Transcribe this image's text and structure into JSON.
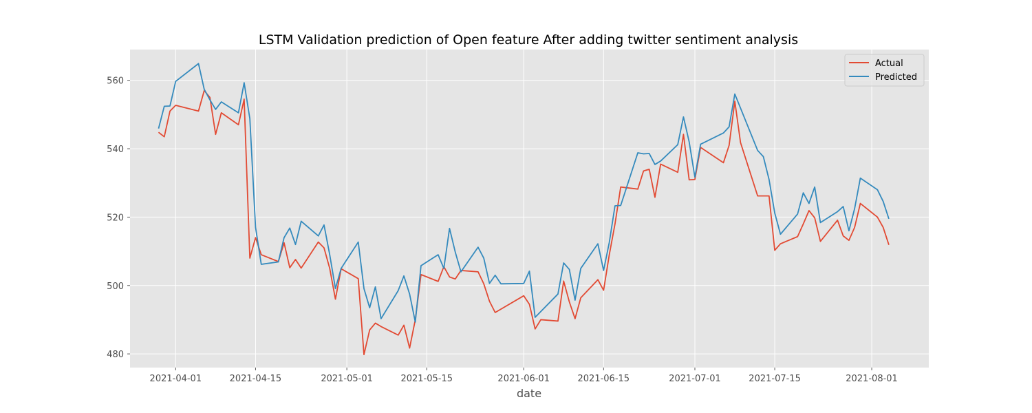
{
  "chart_data": {
    "type": "line",
    "title": "LSTM Validation prediction of Open feature After adding twitter sentiment analysis",
    "xlabel": "date",
    "ylabel": "",
    "x_ticks": [
      "2021-04-01",
      "2021-04-15",
      "2021-05-01",
      "2021-05-15",
      "2021-06-01",
      "2021-06-15",
      "2021-07-01",
      "2021-07-15",
      "2021-08-01"
    ],
    "y_ticks": [
      480,
      500,
      520,
      540,
      560
    ],
    "xlim": [
      "2021-03-24",
      "2021-08-11"
    ],
    "ylim": [
      476,
      569
    ],
    "grid": true,
    "legend_position": "top-right",
    "series": [
      {
        "name": "Actual",
        "color": "#e24a33",
        "points": [
          [
            "2021-03-29",
            544.8
          ],
          [
            "2021-03-30",
            543.5
          ],
          [
            "2021-03-31",
            551.0
          ],
          [
            "2021-04-01",
            552.7
          ],
          [
            "2021-04-05",
            551.0
          ],
          [
            "2021-04-06",
            557.0
          ],
          [
            "2021-04-07",
            555.0
          ],
          [
            "2021-04-08",
            544.2
          ],
          [
            "2021-04-09",
            550.5
          ],
          [
            "2021-04-12",
            547.0
          ],
          [
            "2021-04-13",
            554.5
          ],
          [
            "2021-04-14",
            508.0
          ],
          [
            "2021-04-15",
            514.0
          ],
          [
            "2021-04-16",
            509.0
          ],
          [
            "2021-04-19",
            507.0
          ],
          [
            "2021-04-20",
            512.5
          ],
          [
            "2021-04-21",
            505.2
          ],
          [
            "2021-04-22",
            507.6
          ],
          [
            "2021-04-23",
            505.1
          ],
          [
            "2021-04-26",
            512.7
          ],
          [
            "2021-04-27",
            511.0
          ],
          [
            "2021-04-28",
            505.0
          ],
          [
            "2021-04-29",
            496.0
          ],
          [
            "2021-04-30",
            504.9
          ],
          [
            "2021-05-03",
            502.0
          ],
          [
            "2021-05-04",
            479.8
          ],
          [
            "2021-05-05",
            487.0
          ],
          [
            "2021-05-06",
            489.0
          ],
          [
            "2021-05-07",
            488.0
          ],
          [
            "2021-05-10",
            485.5
          ],
          [
            "2021-05-11",
            488.4
          ],
          [
            "2021-05-12",
            481.7
          ],
          [
            "2021-05-13",
            490.0
          ],
          [
            "2021-05-14",
            503.2
          ],
          [
            "2021-05-17",
            501.2
          ],
          [
            "2021-05-18",
            505.5
          ],
          [
            "2021-05-19",
            502.5
          ],
          [
            "2021-05-20",
            501.9
          ],
          [
            "2021-05-21",
            504.4
          ],
          [
            "2021-05-24",
            504.0
          ],
          [
            "2021-05-25",
            500.5
          ],
          [
            "2021-05-26",
            495.4
          ],
          [
            "2021-05-27",
            492.1
          ],
          [
            "2021-06-01",
            497.0
          ],
          [
            "2021-06-02",
            494.5
          ],
          [
            "2021-06-03",
            487.3
          ],
          [
            "2021-06-04",
            490.0
          ],
          [
            "2021-06-07",
            489.6
          ],
          [
            "2021-06-08",
            501.3
          ],
          [
            "2021-06-09",
            495.2
          ],
          [
            "2021-06-10",
            490.3
          ],
          [
            "2021-06-11",
            496.4
          ],
          [
            "2021-06-14",
            501.7
          ],
          [
            "2021-06-15",
            498.6
          ],
          [
            "2021-06-16",
            509.0
          ],
          [
            "2021-06-17",
            518.0
          ],
          [
            "2021-06-18",
            528.8
          ],
          [
            "2021-06-21",
            528.2
          ],
          [
            "2021-06-22",
            533.5
          ],
          [
            "2021-06-23",
            534.0
          ],
          [
            "2021-06-24",
            525.8
          ],
          [
            "2021-06-25",
            535.5
          ],
          [
            "2021-06-28",
            533.1
          ],
          [
            "2021-06-29",
            544.2
          ],
          [
            "2021-06-30",
            530.9
          ],
          [
            "2021-07-01",
            531.0
          ],
          [
            "2021-07-02",
            540.4
          ],
          [
            "2021-07-06",
            535.9
          ],
          [
            "2021-07-07",
            541.0
          ],
          [
            "2021-07-08",
            553.9
          ],
          [
            "2021-07-09",
            541.8
          ],
          [
            "2021-07-12",
            526.2
          ],
          [
            "2021-07-13",
            526.2
          ],
          [
            "2021-07-14",
            526.2
          ],
          [
            "2021-07-15",
            510.3
          ],
          [
            "2021-07-16",
            512.2
          ],
          [
            "2021-07-19",
            514.3
          ],
          [
            "2021-07-20",
            518.0
          ],
          [
            "2021-07-21",
            521.9
          ],
          [
            "2021-07-22",
            519.8
          ],
          [
            "2021-07-23",
            512.9
          ],
          [
            "2021-07-26",
            519.1
          ],
          [
            "2021-07-27",
            514.5
          ],
          [
            "2021-07-28",
            513.2
          ],
          [
            "2021-07-29",
            517.0
          ],
          [
            "2021-07-30",
            524.0
          ],
          [
            "2021-08-02",
            520.0
          ],
          [
            "2021-08-03",
            517.0
          ],
          [
            "2021-08-04",
            511.9
          ]
        ]
      },
      {
        "name": "Predicted",
        "color": "#348abd",
        "points": [
          [
            "2021-03-29",
            545.9
          ],
          [
            "2021-03-30",
            552.4
          ],
          [
            "2021-03-31",
            552.5
          ],
          [
            "2021-04-01",
            559.7
          ],
          [
            "2021-04-05",
            564.9
          ],
          [
            "2021-04-06",
            557.4
          ],
          [
            "2021-04-07",
            554.3
          ],
          [
            "2021-04-08",
            551.5
          ],
          [
            "2021-04-09",
            553.7
          ],
          [
            "2021-04-12",
            550.5
          ],
          [
            "2021-04-13",
            559.3
          ],
          [
            "2021-04-14",
            548.8
          ],
          [
            "2021-04-15",
            517.0
          ],
          [
            "2021-04-16",
            506.2
          ],
          [
            "2021-04-19",
            506.9
          ],
          [
            "2021-04-20",
            514.0
          ],
          [
            "2021-04-21",
            516.8
          ],
          [
            "2021-04-22",
            512.0
          ],
          [
            "2021-04-23",
            518.8
          ],
          [
            "2021-04-26",
            514.5
          ],
          [
            "2021-04-27",
            517.7
          ],
          [
            "2021-04-28",
            509.0
          ],
          [
            "2021-04-29",
            499.1
          ],
          [
            "2021-04-30",
            505.0
          ],
          [
            "2021-05-03",
            512.7
          ],
          [
            "2021-05-04",
            499.1
          ],
          [
            "2021-05-05",
            493.5
          ],
          [
            "2021-05-06",
            499.6
          ],
          [
            "2021-05-07",
            490.3
          ],
          [
            "2021-05-10",
            498.5
          ],
          [
            "2021-05-11",
            502.8
          ],
          [
            "2021-05-12",
            497.5
          ],
          [
            "2021-05-13",
            489.3
          ],
          [
            "2021-05-14",
            505.8
          ],
          [
            "2021-05-17",
            509.0
          ],
          [
            "2021-05-18",
            505.0
          ],
          [
            "2021-05-19",
            516.7
          ],
          [
            "2021-05-20",
            509.8
          ],
          [
            "2021-05-21",
            504.0
          ],
          [
            "2021-05-24",
            511.2
          ],
          [
            "2021-05-25",
            508.0
          ],
          [
            "2021-05-26",
            500.6
          ],
          [
            "2021-05-27",
            503.0
          ],
          [
            "2021-05-28",
            500.5
          ],
          [
            "2021-06-01",
            500.6
          ],
          [
            "2021-06-02",
            504.2
          ],
          [
            "2021-06-03",
            490.7
          ],
          [
            "2021-06-07",
            497.5
          ],
          [
            "2021-06-08",
            506.6
          ],
          [
            "2021-06-09",
            504.7
          ],
          [
            "2021-06-10",
            495.7
          ],
          [
            "2021-06-11",
            505.0
          ],
          [
            "2021-06-14",
            512.2
          ],
          [
            "2021-06-15",
            504.4
          ],
          [
            "2021-06-16",
            512.6
          ],
          [
            "2021-06-17",
            523.3
          ],
          [
            "2021-06-18",
            523.4
          ],
          [
            "2021-06-21",
            538.8
          ],
          [
            "2021-06-22",
            538.5
          ],
          [
            "2021-06-23",
            538.6
          ],
          [
            "2021-06-24",
            535.4
          ],
          [
            "2021-06-25",
            536.4
          ],
          [
            "2021-06-28",
            541.2
          ],
          [
            "2021-06-29",
            549.3
          ],
          [
            "2021-06-30",
            542.0
          ],
          [
            "2021-07-01",
            531.7
          ],
          [
            "2021-07-02",
            541.3
          ],
          [
            "2021-07-06",
            544.6
          ],
          [
            "2021-07-07",
            546.4
          ],
          [
            "2021-07-08",
            556.0
          ],
          [
            "2021-07-12",
            539.5
          ],
          [
            "2021-07-13",
            537.7
          ],
          [
            "2021-07-14",
            531.0
          ],
          [
            "2021-07-15",
            521.2
          ],
          [
            "2021-07-16",
            515.0
          ],
          [
            "2021-07-19",
            520.9
          ],
          [
            "2021-07-20",
            527.1
          ],
          [
            "2021-07-21",
            524.0
          ],
          [
            "2021-07-22",
            528.8
          ],
          [
            "2021-07-23",
            518.4
          ],
          [
            "2021-07-26",
            521.6
          ],
          [
            "2021-07-27",
            523.1
          ],
          [
            "2021-07-28",
            516.0
          ],
          [
            "2021-07-29",
            522.5
          ],
          [
            "2021-07-30",
            531.4
          ],
          [
            "2021-08-02",
            528.0
          ],
          [
            "2021-08-03",
            524.6
          ],
          [
            "2021-08-04",
            519.5
          ]
        ]
      }
    ]
  }
}
